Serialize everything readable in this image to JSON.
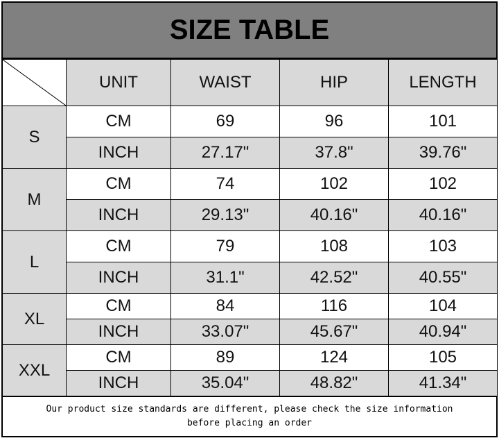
{
  "title": "SIZE TABLE",
  "headers": [
    "UNIT",
    "WAIST",
    "HIP",
    "LENGTH"
  ],
  "rows": [
    {
      "size": "S",
      "cm": {
        "unit": "CM",
        "waist": "69",
        "hip": "96",
        "length": "101"
      },
      "inch": {
        "unit": "INCH",
        "waist": "27.17\"",
        "hip": "37.8\"",
        "length": "39.76\""
      }
    },
    {
      "size": "M",
      "cm": {
        "unit": "CM",
        "waist": "74",
        "hip": "102",
        "length": "102"
      },
      "inch": {
        "unit": "INCH",
        "waist": "29.13\"",
        "hip": "40.16\"",
        "length": "40.16\""
      }
    },
    {
      "size": "L",
      "cm": {
        "unit": "CM",
        "waist": "79",
        "hip": "108",
        "length": "103"
      },
      "inch": {
        "unit": "INCH",
        "waist": "31.1\"",
        "hip": "42.52\"",
        "length": "40.55\""
      }
    },
    {
      "size": "XL",
      "cm": {
        "unit": "CM",
        "waist": "84",
        "hip": "116",
        "length": "104"
      },
      "inch": {
        "unit": "INCH",
        "waist": "33.07\"",
        "hip": "45.67\"",
        "length": "40.94\""
      }
    },
    {
      "size": "XXL",
      "cm": {
        "unit": "CM",
        "waist": "89",
        "hip": "124",
        "length": "105"
      },
      "inch": {
        "unit": "INCH",
        "waist": "35.04\"",
        "hip": "48.82\"",
        "length": "41.34\""
      }
    }
  ],
  "footer": {
    "line1": "Our product size standards are different, please check the size information",
    "line2": "before placing an order"
  },
  "colors": {
    "title_bg": "#808080",
    "cell_gray": "#d9d9d9"
  }
}
